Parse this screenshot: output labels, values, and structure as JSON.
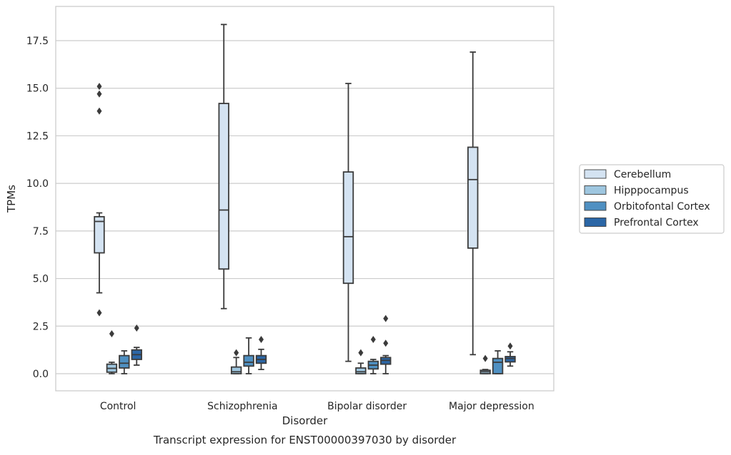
{
  "caption": "Transcript expression for ENST00000397030 by disorder",
  "chart_data": {
    "type": "boxplot",
    "title": "",
    "xlabel": "Disorder",
    "ylabel": "TPMs",
    "ylim": [
      -0.9,
      19.3
    ],
    "yticks": [
      0.0,
      2.5,
      5.0,
      7.5,
      10.0,
      12.5,
      15.0,
      17.5
    ],
    "ytick_labels": [
      "0.0",
      "2.5",
      "5.0",
      "7.5",
      "10.0",
      "12.5",
      "15.0",
      "17.5"
    ],
    "grid": "y",
    "legend_position": "right",
    "categories": [
      "Control",
      "Schizophrenia",
      "Bipolar disorder",
      "Major depression"
    ],
    "series": [
      {
        "name": "Cerebellum",
        "color": "#d4e3f2",
        "boxes": [
          {
            "whislo": 4.25,
            "q1": 6.35,
            "med": 8.0,
            "q3": 8.25,
            "whishi": 8.45,
            "fliers": [
              15.1,
              14.7,
              13.8,
              3.2
            ]
          },
          {
            "whislo": 3.42,
            "q1": 5.5,
            "med": 8.6,
            "q3": 14.2,
            "whishi": 18.35,
            "fliers": []
          },
          {
            "whislo": 0.65,
            "q1": 4.75,
            "med": 7.2,
            "q3": 10.6,
            "whishi": 15.25,
            "fliers": []
          },
          {
            "whislo": 1.0,
            "q1": 6.6,
            "med": 10.2,
            "q3": 11.9,
            "whishi": 16.9,
            "fliers": []
          }
        ]
      },
      {
        "name": "Hipppocampus",
        "color": "#9ec6df",
        "boxes": [
          {
            "whislo": 0.0,
            "q1": 0.08,
            "med": 0.28,
            "q3": 0.5,
            "whishi": 0.6,
            "fliers": [
              2.1
            ]
          },
          {
            "whislo": 0.0,
            "q1": 0.0,
            "med": 0.1,
            "q3": 0.35,
            "whishi": 0.85,
            "fliers": [
              1.1
            ]
          },
          {
            "whislo": 0.0,
            "q1": 0.0,
            "med": 0.1,
            "q3": 0.3,
            "whishi": 0.55,
            "fliers": [
              1.1
            ]
          },
          {
            "whislo": 0.0,
            "q1": 0.0,
            "med": 0.1,
            "q3": 0.18,
            "whishi": 0.22,
            "fliers": [
              0.8
            ]
          }
        ]
      },
      {
        "name": "Orbitofontal Cortex",
        "color": "#4f90c2",
        "boxes": [
          {
            "whislo": 0.0,
            "q1": 0.3,
            "med": 0.55,
            "q3": 0.95,
            "whishi": 1.2,
            "fliers": []
          },
          {
            "whislo": 0.0,
            "q1": 0.4,
            "med": 0.6,
            "q3": 0.95,
            "whishi": 1.88,
            "fliers": []
          },
          {
            "whislo": 0.0,
            "q1": 0.25,
            "med": 0.45,
            "q3": 0.65,
            "whishi": 0.75,
            "fliers": [
              1.8
            ]
          },
          {
            "whislo": 0.0,
            "q1": 0.0,
            "med": 0.6,
            "q3": 0.8,
            "whishi": 1.2,
            "fliers": []
          }
        ]
      },
      {
        "name": "Prefrontal Cortex",
        "color": "#2b66a6",
        "boxes": [
          {
            "whislo": 0.45,
            "q1": 0.75,
            "med": 1.0,
            "q3": 1.25,
            "whishi": 1.38,
            "fliers": [
              2.4
            ]
          },
          {
            "whislo": 0.22,
            "q1": 0.55,
            "med": 0.75,
            "q3": 0.95,
            "whishi": 1.28,
            "fliers": [
              1.8
            ]
          },
          {
            "whislo": 0.0,
            "q1": 0.5,
            "med": 0.7,
            "q3": 0.85,
            "whishi": 0.95,
            "fliers": [
              2.9,
              1.6
            ]
          },
          {
            "whislo": 0.4,
            "q1": 0.62,
            "med": 0.8,
            "q3": 0.9,
            "whishi": 1.15,
            "fliers": [
              1.45
            ]
          }
        ]
      }
    ]
  }
}
